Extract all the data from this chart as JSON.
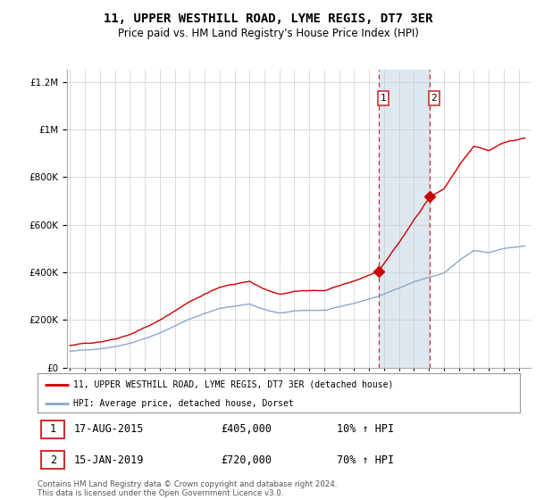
{
  "title": "11, UPPER WESTHILL ROAD, LYME REGIS, DT7 3ER",
  "subtitle": "Price paid vs. HM Land Registry's House Price Index (HPI)",
  "legend_line1": "11, UPPER WESTHILL ROAD, LYME REGIS, DT7 3ER (detached house)",
  "legend_line2": "HPI: Average price, detached house, Dorset",
  "sale1_label": "1",
  "sale1_date": "17-AUG-2015",
  "sale1_price": "£405,000",
  "sale1_hpi": "10% ↑ HPI",
  "sale2_label": "2",
  "sale2_date": "15-JAN-2019",
  "sale2_price": "£720,000",
  "sale2_hpi": "70% ↑ HPI",
  "footer": "Contains HM Land Registry data © Crown copyright and database right 2024.\nThis data is licensed under the Open Government Licence v3.0.",
  "property_color": "#cc0000",
  "hpi_color": "#88aacc",
  "sale1_year": 2015.625,
  "sale1_value": 405000,
  "sale2_year": 2019.042,
  "sale2_value": 720000,
  "shaded_color": "#dde8f0",
  "ylim_max": 1250000,
  "ylim_min": 0
}
